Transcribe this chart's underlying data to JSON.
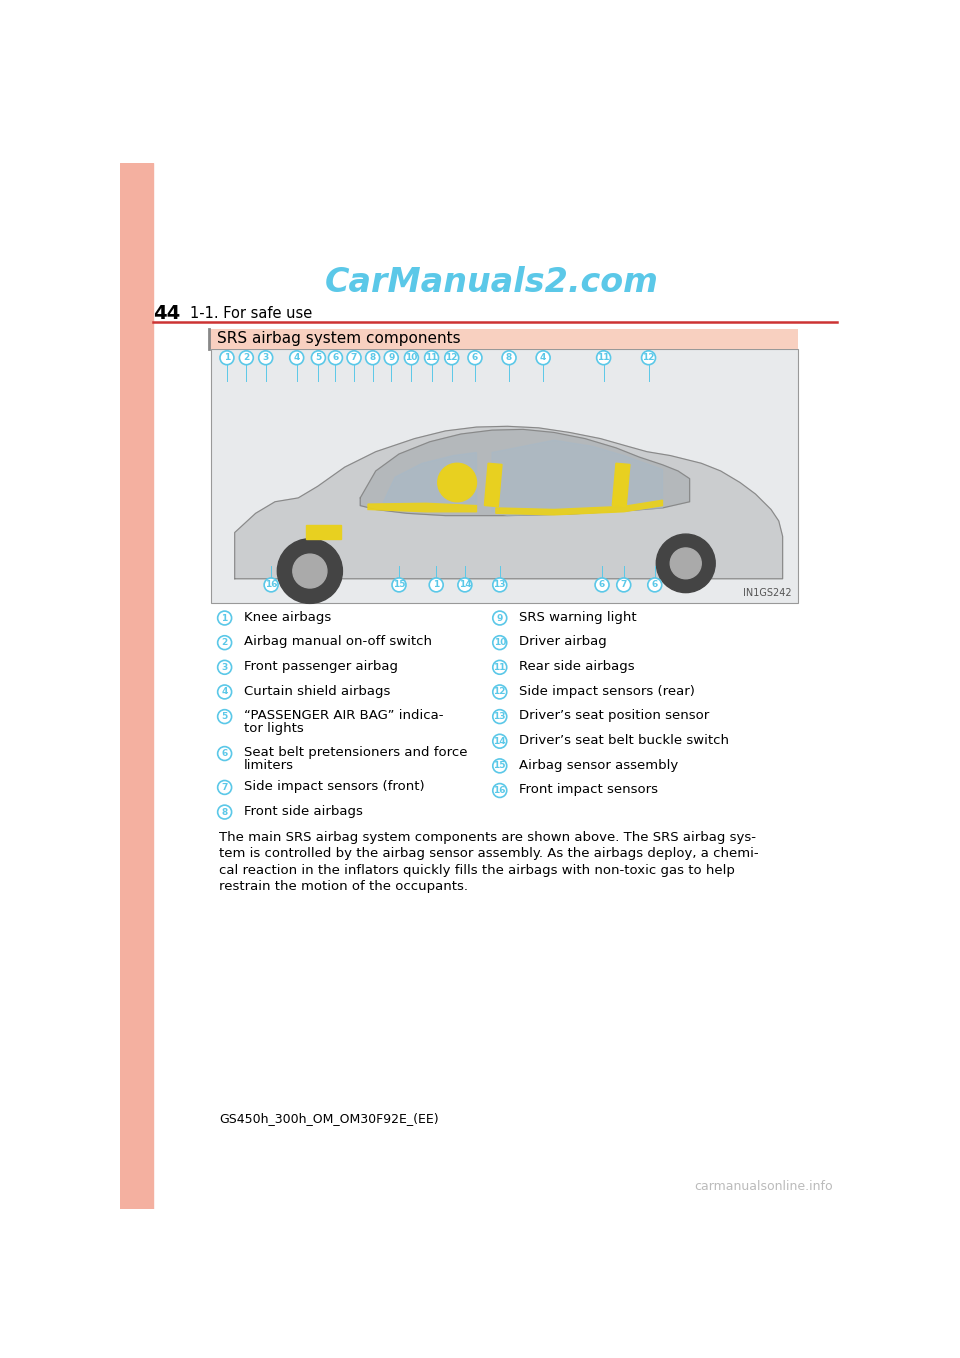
{
  "page_number": "44",
  "section_title": "1-1. For safe use",
  "watermark_text": "CarManuals2.com",
  "watermark_color": "#5bc8e8",
  "section_box_title": "SRS airbag system components",
  "left_bar_color": "#f4b0a0",
  "header_line_color": "#cc3333",
  "footer_text": "GS450h_300h_OM_OM30F92E_(EE)",
  "footer_watermark": "carmanualsonline.info",
  "footer_watermark_color": "#bbbbbb",
  "left_column_items": [
    {
      "num": "1",
      "text": "Knee airbags",
      "multiline": false
    },
    {
      "num": "2",
      "text": "Airbag manual on-off switch",
      "multiline": false
    },
    {
      "num": "3",
      "text": "Front passenger airbag",
      "multiline": false
    },
    {
      "num": "4",
      "text": "Curtain shield airbags",
      "multiline": false
    },
    {
      "num": "5",
      "text": "“PASSENGER AIR BAG” indica-\ntor lights",
      "multiline": true
    },
    {
      "num": "6",
      "text": "Seat belt pretensioners and force\nlimiters",
      "multiline": true
    },
    {
      "num": "7",
      "text": "Side impact sensors (front)",
      "multiline": false
    },
    {
      "num": "8",
      "text": "Front side airbags",
      "multiline": false
    }
  ],
  "right_column_items": [
    {
      "num": "9",
      "text": "SRS warning light",
      "multiline": false
    },
    {
      "num": "10",
      "text": "Driver airbag",
      "multiline": false
    },
    {
      "num": "11",
      "text": "Rear side airbags",
      "multiline": false
    },
    {
      "num": "12",
      "text": "Side impact sensors (rear)",
      "multiline": false
    },
    {
      "num": "13",
      "text": "Driver’s seat position sensor",
      "multiline": false
    },
    {
      "num": "14",
      "text": "Driver’s seat belt buckle switch",
      "multiline": false
    },
    {
      "num": "15",
      "text": "Airbag sensor assembly",
      "multiline": false
    },
    {
      "num": "16",
      "text": "Front impact sensors",
      "multiline": false
    }
  ],
  "circle_color": "#5bc8e8",
  "circle_edge_color": "#5bc8e8",
  "circle_bg": "white",
  "section_box_bg": "#f8d0c0",
  "image_bg": "#e8eaec",
  "image_border": "#999999",
  "body_lines": [
    "The main SRS airbag system components are shown above. The SRS airbag sys-",
    "tem is controlled by the airbag sensor assembly. As the airbags deploy, a chemi-",
    "cal reaction in the inflators quickly fills the airbags with non-toxic gas to help",
    "restrain the motion of the occupants."
  ]
}
